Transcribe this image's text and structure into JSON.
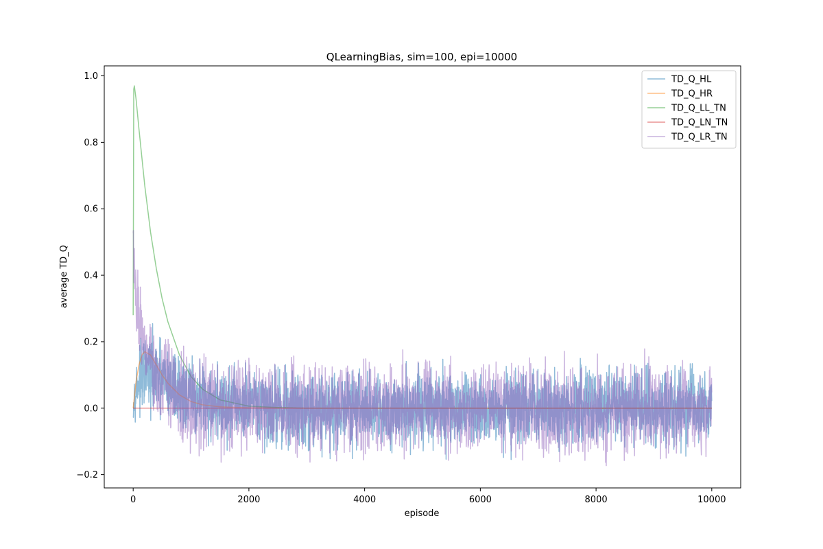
{
  "chart_data": {
    "type": "line",
    "title": "QLearningBias, sim=100, epi=10000",
    "xlabel": "episode",
    "ylabel": "average TD_Q",
    "xlim": [
      -500,
      10500
    ],
    "ylim": [
      -0.24,
      1.03
    ],
    "xticks": [
      0,
      2000,
      4000,
      6000,
      8000,
      10000
    ],
    "xtick_labels": [
      "0",
      "2000",
      "4000",
      "6000",
      "8000",
      "10000"
    ],
    "yticks": [
      -0.2,
      0.0,
      0.2,
      0.4,
      0.6,
      0.8,
      1.0
    ],
    "ytick_labels": [
      "−0.2",
      "0.0",
      "0.2",
      "0.4",
      "0.6",
      "0.8",
      "1.0"
    ],
    "grid": false,
    "legend_position": "top-right",
    "series": [
      {
        "name": "TD_Q_HL",
        "color": "#1f77b4",
        "style": "noisy",
        "x": [
          0,
          10,
          20,
          50,
          100,
          150,
          200,
          300,
          400,
          600,
          800,
          1000,
          1500,
          2000,
          3000,
          4000,
          5000,
          6000,
          7000,
          8000,
          9000,
          10000
        ],
        "values": [
          0.0,
          0.02,
          0.04,
          0.06,
          0.08,
          0.09,
          0.1,
          0.1,
          0.09,
          0.07,
          0.05,
          0.03,
          0.01,
          0.0,
          0.0,
          0.0,
          0.0,
          0.0,
          0.0,
          0.0,
          0.0,
          0.0
        ],
        "noise_amplitude": [
          0.02,
          0.03,
          0.04,
          0.05,
          0.06,
          0.07,
          0.07,
          0.08,
          0.08,
          0.08,
          0.08,
          0.08,
          0.08,
          0.08,
          0.08,
          0.08,
          0.08,
          0.08,
          0.08,
          0.08,
          0.08,
          0.08
        ]
      },
      {
        "name": "TD_Q_HR",
        "color": "#ff7f0e",
        "style": "smooth",
        "x": [
          0,
          50,
          100,
          150,
          200,
          300,
          400,
          500,
          600,
          800,
          1000,
          1200,
          1500,
          2000,
          3000,
          4000,
          5000,
          6000,
          7000,
          8000,
          9000,
          10000
        ],
        "values": [
          0.0,
          0.08,
          0.13,
          0.16,
          0.17,
          0.16,
          0.13,
          0.1,
          0.075,
          0.04,
          0.02,
          0.01,
          0.004,
          0.001,
          0.0,
          0.0,
          0.0,
          0.0,
          0.0,
          0.0,
          0.0,
          0.0
        ]
      },
      {
        "name": "TD_Q_LL_TN",
        "color": "#2ca02c",
        "style": "smooth",
        "x": [
          0,
          10,
          20,
          50,
          100,
          200,
          300,
          400,
          500,
          600,
          800,
          1000,
          1200,
          1500,
          2000,
          2500,
          3000,
          4000,
          5000,
          6000,
          7000,
          8000,
          9000,
          10000
        ],
        "values": [
          0.28,
          0.96,
          0.97,
          0.93,
          0.84,
          0.67,
          0.53,
          0.42,
          0.33,
          0.26,
          0.16,
          0.095,
          0.057,
          0.025,
          0.006,
          0.002,
          0.0,
          0.0,
          0.0,
          0.0,
          0.0,
          0.0,
          0.0,
          0.0
        ]
      },
      {
        "name": "TD_Q_LN_TN",
        "color": "#d62728",
        "style": "smooth",
        "x": [
          0,
          200,
          1000,
          2000,
          3000,
          4000,
          5000,
          6000,
          7000,
          8000,
          9000,
          10000
        ],
        "values": [
          0.0,
          0.0,
          0.0,
          0.0,
          0.0,
          0.0,
          0.0,
          0.0,
          0.0,
          0.0,
          0.0,
          0.0
        ]
      },
      {
        "name": "TD_Q_LR_TN",
        "color": "#9467bd",
        "style": "noisy",
        "x": [
          0,
          10,
          20,
          50,
          100,
          150,
          200,
          300,
          400,
          500,
          600,
          800,
          1000,
          1200,
          1500,
          2000,
          3000,
          4000,
          5000,
          6000,
          7000,
          8000,
          9000,
          10000
        ],
        "values": [
          0.55,
          0.45,
          0.38,
          0.32,
          0.28,
          0.24,
          0.2,
          0.15,
          0.11,
          0.08,
          0.06,
          0.03,
          0.015,
          0.008,
          0.003,
          0.0,
          0.0,
          0.0,
          0.0,
          0.0,
          0.0,
          0.0,
          0.0,
          0.0
        ],
        "noise_amplitude": [
          0.04,
          0.06,
          0.07,
          0.07,
          0.08,
          0.08,
          0.08,
          0.08,
          0.09,
          0.09,
          0.09,
          0.09,
          0.09,
          0.09,
          0.09,
          0.09,
          0.09,
          0.09,
          0.09,
          0.09,
          0.09,
          0.09,
          0.09,
          0.09
        ]
      }
    ]
  }
}
